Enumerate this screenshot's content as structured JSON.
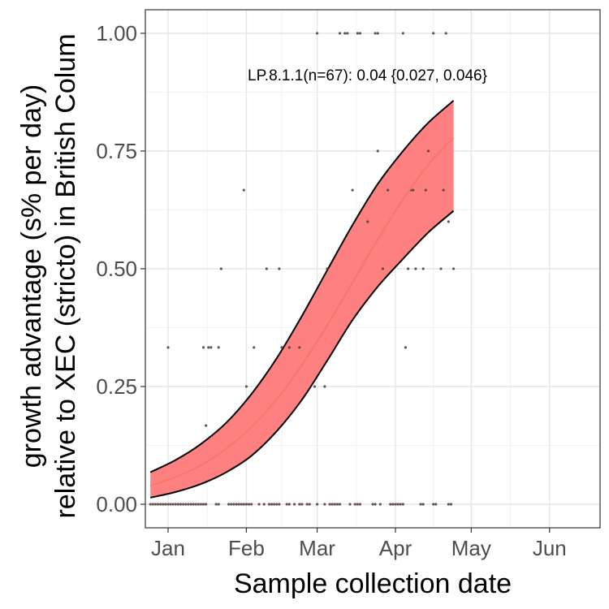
{
  "chart_data": {
    "type": "line",
    "annotation": "LP.8.1.1(n=67): 0.04 {0.027, 0.046}",
    "xlabel": "Sample collection date",
    "ylabel_line1": "growth advantage (s% per day)",
    "ylabel_line2": "relative to XEC (stricto) in British Colum",
    "x_axis": {
      "unit": "date",
      "range": [
        "2024-12-23",
        "2025-06-21"
      ],
      "ticks": [
        {
          "date": "2025-01-01",
          "label": "Jan"
        },
        {
          "date": "2025-02-01",
          "label": "Feb"
        },
        {
          "date": "2025-03-01",
          "label": "Mar"
        },
        {
          "date": "2025-04-01",
          "label": "Apr"
        },
        {
          "date": "2025-05-01",
          "label": "May"
        },
        {
          "date": "2025-06-01",
          "label": "Jun"
        }
      ]
    },
    "y_axis": {
      "range": [
        -0.05,
        1.05
      ],
      "ticks": [
        0.0,
        0.25,
        0.5,
        0.75,
        1.0
      ],
      "tick_labels": [
        "0.00",
        "0.25",
        "0.50",
        "0.75",
        "1.00"
      ]
    },
    "grid": true,
    "series": [
      {
        "kind": "fit_with_ribbon",
        "color": "#f8766d",
        "ribbon_color": "#ff8080",
        "x": [
          "2024-12-25",
          "2025-01-04",
          "2025-01-14",
          "2025-01-24",
          "2025-02-03",
          "2025-02-13",
          "2025-02-23",
          "2025-03-05",
          "2025-03-15",
          "2025-03-25",
          "2025-04-04",
          "2025-04-14",
          "2025-04-24"
        ],
        "y": [
          0.039,
          0.058,
          0.083,
          0.118,
          0.164,
          0.223,
          0.296,
          0.38,
          0.471,
          0.562,
          0.647,
          0.721,
          0.778
        ],
        "lower": [
          0.014,
          0.026,
          0.043,
          0.068,
          0.103,
          0.155,
          0.222,
          0.305,
          0.391,
          0.462,
          0.521,
          0.577,
          0.623
        ],
        "upper": [
          0.068,
          0.094,
          0.128,
          0.173,
          0.234,
          0.31,
          0.4,
          0.497,
          0.593,
          0.68,
          0.75,
          0.81,
          0.857
        ]
      },
      {
        "kind": "observed_points",
        "color": "#4d3a3a",
        "points": [
          {
            "x": "2024-12-25",
            "y": 0.0
          },
          {
            "x": "2024-12-26",
            "y": 0.0
          },
          {
            "x": "2024-12-27",
            "y": 0.0
          },
          {
            "x": "2024-12-28",
            "y": 0.0
          },
          {
            "x": "2024-12-29",
            "y": 0.0
          },
          {
            "x": "2024-12-30",
            "y": 0.0
          },
          {
            "x": "2024-12-31",
            "y": 0.0
          },
          {
            "x": "2025-01-01",
            "y": 0.0
          },
          {
            "x": "2025-01-02",
            "y": 0.0
          },
          {
            "x": "2025-01-03",
            "y": 0.0
          },
          {
            "x": "2025-01-04",
            "y": 0.0
          },
          {
            "x": "2025-01-05",
            "y": 0.0
          },
          {
            "x": "2025-01-06",
            "y": 0.0
          },
          {
            "x": "2025-01-07",
            "y": 0.0
          },
          {
            "x": "2025-01-08",
            "y": 0.0
          },
          {
            "x": "2025-01-09",
            "y": 0.0
          },
          {
            "x": "2025-01-10",
            "y": 0.0
          },
          {
            "x": "2025-01-11",
            "y": 0.0
          },
          {
            "x": "2025-01-12",
            "y": 0.0
          },
          {
            "x": "2025-01-13",
            "y": 0.0
          },
          {
            "x": "2025-01-14",
            "y": 0.0
          },
          {
            "x": "2025-01-15",
            "y": 0.0
          },
          {
            "x": "2025-01-16",
            "y": 0.0
          },
          {
            "x": "2025-01-20",
            "y": 0.0
          },
          {
            "x": "2025-01-21",
            "y": 0.0
          },
          {
            "x": "2025-01-25",
            "y": 0.0
          },
          {
            "x": "2025-01-26",
            "y": 0.0
          },
          {
            "x": "2025-01-27",
            "y": 0.0
          },
          {
            "x": "2025-01-28",
            "y": 0.0
          },
          {
            "x": "2025-01-29",
            "y": 0.0
          },
          {
            "x": "2025-01-30",
            "y": 0.0
          },
          {
            "x": "2025-01-31",
            "y": 0.0
          },
          {
            "x": "2025-02-01",
            "y": 0.0
          },
          {
            "x": "2025-02-02",
            "y": 0.0
          },
          {
            "x": "2025-02-03",
            "y": 0.0
          },
          {
            "x": "2025-02-06",
            "y": 0.0
          },
          {
            "x": "2025-02-08",
            "y": 0.0
          },
          {
            "x": "2025-02-10",
            "y": 0.0
          },
          {
            "x": "2025-02-11",
            "y": 0.0
          },
          {
            "x": "2025-02-12",
            "y": 0.0
          },
          {
            "x": "2025-02-13",
            "y": 0.0
          },
          {
            "x": "2025-02-14",
            "y": 0.0
          },
          {
            "x": "2025-02-17",
            "y": 0.0
          },
          {
            "x": "2025-02-18",
            "y": 0.0
          },
          {
            "x": "2025-02-20",
            "y": 0.0
          },
          {
            "x": "2025-02-22",
            "y": 0.0
          },
          {
            "x": "2025-02-23",
            "y": 0.0
          },
          {
            "x": "2025-02-25",
            "y": 0.0
          },
          {
            "x": "2025-02-26",
            "y": 0.0
          },
          {
            "x": "2025-03-01",
            "y": 0.0
          },
          {
            "x": "2025-03-04",
            "y": 0.0
          },
          {
            "x": "2025-03-06",
            "y": 0.0
          },
          {
            "x": "2025-03-07",
            "y": 0.0
          },
          {
            "x": "2025-03-08",
            "y": 0.0
          },
          {
            "x": "2025-03-09",
            "y": 0.0
          },
          {
            "x": "2025-03-10",
            "y": 0.0
          },
          {
            "x": "2025-03-14",
            "y": 0.0
          },
          {
            "x": "2025-03-16",
            "y": 0.0
          },
          {
            "x": "2025-03-17",
            "y": 0.0
          },
          {
            "x": "2025-03-18",
            "y": 0.0
          },
          {
            "x": "2025-03-23",
            "y": 0.0
          },
          {
            "x": "2025-03-24",
            "y": 0.0
          },
          {
            "x": "2025-03-26",
            "y": 0.0
          },
          {
            "x": "2025-03-30",
            "y": 0.0
          },
          {
            "x": "2025-03-31",
            "y": 0.0
          },
          {
            "x": "2025-04-01",
            "y": 0.0
          },
          {
            "x": "2025-04-02",
            "y": 0.0
          },
          {
            "x": "2025-04-03",
            "y": 0.0
          },
          {
            "x": "2025-04-04",
            "y": 0.0
          },
          {
            "x": "2025-04-11",
            "y": 0.0
          },
          {
            "x": "2025-04-12",
            "y": 0.0
          },
          {
            "x": "2025-04-16",
            "y": 0.0
          },
          {
            "x": "2025-04-17",
            "y": 0.0
          },
          {
            "x": "2025-04-22",
            "y": 0.0
          },
          {
            "x": "2025-04-23",
            "y": 0.0
          },
          {
            "x": "2025-01-01",
            "y": 0.333
          },
          {
            "x": "2025-01-16",
            "y": 0.167
          },
          {
            "x": "2025-01-15",
            "y": 0.333
          },
          {
            "x": "2025-01-17",
            "y": 0.333
          },
          {
            "x": "2025-01-18",
            "y": 0.333
          },
          {
            "x": "2025-01-21",
            "y": 0.333
          },
          {
            "x": "2025-01-22",
            "y": 0.5
          },
          {
            "x": "2025-01-31",
            "y": 0.667
          },
          {
            "x": "2025-02-01",
            "y": 0.25
          },
          {
            "x": "2025-02-04",
            "y": 0.333
          },
          {
            "x": "2025-02-09",
            "y": 0.5
          },
          {
            "x": "2025-02-14",
            "y": 0.5
          },
          {
            "x": "2025-02-15",
            "y": 0.333
          },
          {
            "x": "2025-02-18",
            "y": 0.333
          },
          {
            "x": "2025-02-22",
            "y": 0.333
          },
          {
            "x": "2025-02-28",
            "y": 0.25
          },
          {
            "x": "2025-03-04",
            "y": 0.25
          },
          {
            "x": "2025-03-05",
            "y": 0.5
          },
          {
            "x": "2025-03-15",
            "y": 0.667
          },
          {
            "x": "2025-03-21",
            "y": 0.6
          },
          {
            "x": "2025-03-25",
            "y": 0.75
          },
          {
            "x": "2025-03-27",
            "y": 0.5
          },
          {
            "x": "2025-03-29",
            "y": 0.667
          },
          {
            "x": "2025-04-05",
            "y": 0.333
          },
          {
            "x": "2025-04-06",
            "y": 0.5
          },
          {
            "x": "2025-04-07",
            "y": 0.667
          },
          {
            "x": "2025-04-08",
            "y": 0.667
          },
          {
            "x": "2025-04-09",
            "y": 0.5
          },
          {
            "x": "2025-04-12",
            "y": 0.5
          },
          {
            "x": "2025-04-13",
            "y": 0.667
          },
          {
            "x": "2025-04-14",
            "y": 0.75
          },
          {
            "x": "2025-04-19",
            "y": 0.5
          },
          {
            "x": "2025-04-20",
            "y": 0.667
          },
          {
            "x": "2025-04-22",
            "y": 0.6
          },
          {
            "x": "2025-04-24",
            "y": 0.5
          },
          {
            "x": "2025-03-01",
            "y": 1.0
          },
          {
            "x": "2025-03-10",
            "y": 1.0
          },
          {
            "x": "2025-03-12",
            "y": 1.0
          },
          {
            "x": "2025-03-13",
            "y": 1.0
          },
          {
            "x": "2025-03-17",
            "y": 1.0
          },
          {
            "x": "2025-03-18",
            "y": 1.0
          },
          {
            "x": "2025-03-24",
            "y": 1.0
          },
          {
            "x": "2025-03-25",
            "y": 1.0
          },
          {
            "x": "2025-04-04",
            "y": 1.0
          },
          {
            "x": "2025-04-16",
            "y": 1.0
          },
          {
            "x": "2025-04-21",
            "y": 1.0
          }
        ]
      }
    ]
  }
}
